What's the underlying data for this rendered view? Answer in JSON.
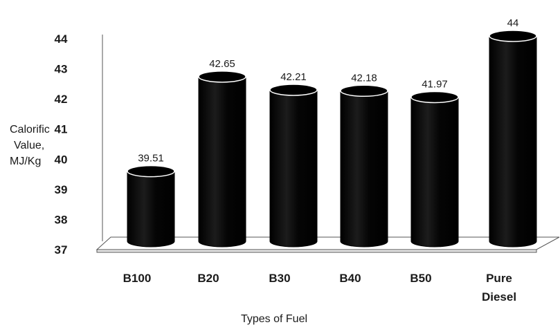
{
  "chart_data": {
    "type": "bar",
    "title": "",
    "categories": [
      "B100",
      "B20",
      "B30",
      "B40",
      "B50",
      "Pure\nDiesel"
    ],
    "values": [
      39.51,
      42.65,
      42.21,
      42.18,
      41.97,
      44
    ],
    "data_labels": [
      "39.51",
      "42.65",
      "42.21",
      "42.18",
      "41.97",
      "44"
    ],
    "ylabel": "Calorific\nValue,\nMJ/Kg",
    "xlabel": "Types of Fuel",
    "ylim": [
      37,
      44
    ],
    "yticks": [
      37,
      38,
      39,
      40,
      41,
      42,
      43,
      44
    ],
    "grid": false,
    "bar_style": "3d-cylinder",
    "bar_color": "#000000"
  }
}
